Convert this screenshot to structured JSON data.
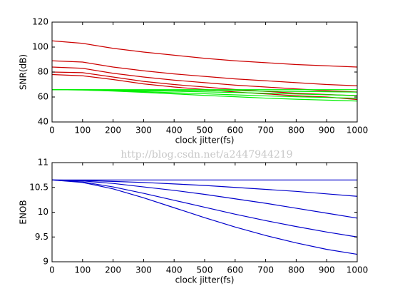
{
  "chart_data": [
    {
      "type": "line",
      "xlabel": "clock jitter(fs)",
      "ylabel": "SNR(dB)",
      "x": [
        0,
        100,
        200,
        300,
        400,
        500,
        600,
        700,
        800,
        900,
        1000
      ],
      "xlim": [
        0,
        1000
      ],
      "xticks": [
        0,
        100,
        200,
        300,
        400,
        500,
        600,
        700,
        800,
        900,
        1000
      ],
      "ylim": [
        40,
        120
      ],
      "yticks": [
        40,
        60,
        80,
        100,
        120
      ],
      "series": [
        {
          "color": "#cc0000",
          "values": [
            105,
            103,
            99,
            96,
            93.5,
            91,
            89,
            87.5,
            86,
            85,
            84
          ]
        },
        {
          "color": "#cc0000",
          "values": [
            89,
            88,
            84,
            81,
            78.5,
            76.5,
            74.5,
            73,
            71.5,
            70,
            69
          ]
        },
        {
          "color": "#cc0000",
          "values": [
            84,
            83,
            79,
            76,
            73.5,
            71.5,
            69.5,
            68,
            66.5,
            65,
            64
          ]
        },
        {
          "color": "#cc0000",
          "values": [
            80,
            79.5,
            76,
            72.5,
            70,
            68,
            66,
            64.5,
            63,
            62,
            61
          ]
        },
        {
          "color": "#cc0000",
          "values": [
            78,
            77,
            74,
            70.5,
            68,
            66,
            64,
            62.5,
            61,
            60,
            58
          ]
        },
        {
          "color": "#00ee00",
          "values": [
            65.9,
            65.9,
            65.9,
            65.9,
            65.9,
            65.9,
            65.9,
            65.9,
            65.9,
            65.9,
            65.9
          ]
        },
        {
          "color": "#00ee00",
          "values": [
            65.9,
            65.8,
            65.7,
            65.6,
            65.4,
            65.2,
            65.0,
            64.7,
            64.5,
            64.2,
            63.9
          ]
        },
        {
          "color": "#00ee00",
          "values": [
            65.9,
            65.8,
            65.5,
            65.0,
            64.6,
            64.1,
            63.6,
            63.0,
            62.4,
            61.8,
            61.2
          ]
        },
        {
          "color": "#00ee00",
          "values": [
            65.9,
            65.6,
            65.0,
            64.3,
            63.4,
            62.6,
            61.7,
            60.9,
            60.2,
            59.6,
            59.0
          ]
        },
        {
          "color": "#00ee00",
          "values": [
            65.9,
            65.6,
            64.8,
            63.7,
            62.5,
            61.3,
            60.2,
            59.1,
            58.2,
            57.5,
            56.8
          ]
        }
      ]
    },
    {
      "type": "line",
      "xlabel": "clock jitter(fs)",
      "ylabel": "ENOB",
      "x": [
        0,
        100,
        200,
        300,
        400,
        500,
        600,
        700,
        800,
        900,
        1000
      ],
      "xlim": [
        0,
        1000
      ],
      "xticks": [
        0,
        100,
        200,
        300,
        400,
        500,
        600,
        700,
        800,
        900,
        1000
      ],
      "ylim": [
        9,
        11
      ],
      "yticks": [
        9,
        9.5,
        10,
        10.5,
        11
      ],
      "series": [
        {
          "color": "#0000cc",
          "values": [
            10.65,
            10.65,
            10.65,
            10.65,
            10.65,
            10.65,
            10.65,
            10.65,
            10.65,
            10.65,
            10.65
          ]
        },
        {
          "color": "#0000cc",
          "values": [
            10.65,
            10.64,
            10.62,
            10.6,
            10.57,
            10.54,
            10.5,
            10.46,
            10.42,
            10.37,
            10.32
          ]
        },
        {
          "color": "#0000cc",
          "values": [
            10.65,
            10.63,
            10.58,
            10.51,
            10.44,
            10.36,
            10.27,
            10.18,
            10.08,
            9.98,
            9.88
          ]
        },
        {
          "color": "#0000cc",
          "values": [
            10.65,
            10.61,
            10.51,
            10.38,
            10.24,
            10.1,
            9.96,
            9.83,
            9.71,
            9.6,
            9.5
          ]
        },
        {
          "color": "#0000cc",
          "values": [
            10.65,
            10.6,
            10.47,
            10.29,
            10.09,
            9.89,
            9.7,
            9.53,
            9.38,
            9.25,
            9.15
          ]
        }
      ]
    }
  ],
  "watermark": "http://blog.csdn.net/a2447944219"
}
